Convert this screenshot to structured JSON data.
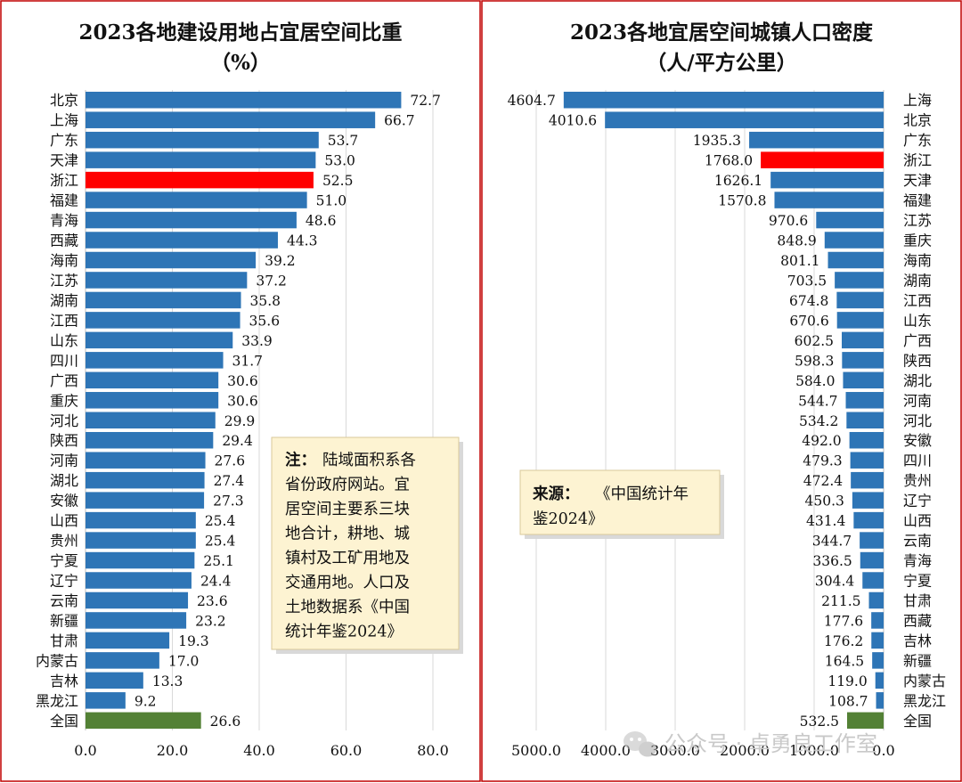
{
  "colors": {
    "frame": "#c00000",
    "bar": "#2e75b6",
    "highlight": "#ff0000",
    "national": "#538135",
    "grid": "#d9d9d9",
    "note_bg": "#fdf3d2"
  },
  "chart_data": [
    {
      "type": "bar",
      "orientation": "horizontal",
      "title": "2023各地建设用地占宜居空间比重",
      "subtitle": "（%）",
      "categories": [
        "北京",
        "上海",
        "广东",
        "天津",
        "浙江",
        "福建",
        "青海",
        "西藏",
        "海南",
        "江苏",
        "湖南",
        "江西",
        "山东",
        "四川",
        "广西",
        "重庆",
        "河北",
        "陕西",
        "河南",
        "湖北",
        "安徽",
        "山西",
        "贵州",
        "宁夏",
        "辽宁",
        "云南",
        "新疆",
        "甘肃",
        "内蒙古",
        "吉林",
        "黑龙江",
        "全国"
      ],
      "values": [
        72.7,
        66.7,
        53.7,
        53.0,
        52.5,
        51.0,
        48.6,
        44.3,
        39.2,
        37.2,
        35.8,
        35.6,
        33.9,
        31.7,
        30.6,
        30.6,
        29.9,
        29.4,
        27.6,
        27.4,
        27.3,
        25.4,
        25.4,
        25.1,
        24.4,
        23.6,
        23.2,
        19.3,
        17.0,
        13.3,
        9.2,
        26.6
      ],
      "value_labels": [
        "72.7",
        "66.7",
        "53.7",
        "53.0",
        "52.5",
        "51.0",
        "48.6",
        "44.3",
        "39.2",
        "37.2",
        "35.8",
        "35.6",
        "33.9",
        "31.7",
        "30.6",
        "30.6",
        "29.9",
        "29.4",
        "27.6",
        "27.4",
        "27.3",
        "25.4",
        "25.4",
        "25.1",
        "24.4",
        "23.6",
        "23.2",
        "19.3",
        "17.0",
        "13.3",
        "9.2",
        "26.6"
      ],
      "highlight": [
        "浙江"
      ],
      "total_category": "全国",
      "xlim": [
        0,
        80
      ],
      "ticks": [
        0,
        20,
        40,
        60,
        80
      ],
      "tick_labels": [
        "0.0",
        "20.0",
        "40.0",
        "60.0",
        "80.0"
      ],
      "grid": true,
      "note": {
        "label": "注：",
        "lines": [
          "陆域面积系各",
          "省份政府网站。宜",
          "居空间主要系三块",
          "地合计，耕地、城",
          "镇村及工矿用地及",
          "交通用地。人口及",
          "土地数据系《中国",
          "统计年鉴2024》"
        ]
      }
    },
    {
      "type": "bar",
      "orientation": "horizontal",
      "direction": "reversed",
      "title": "2023各地宜居空间城镇人口密度",
      "subtitle": "（人/平方公里）",
      "categories": [
        "上海",
        "北京",
        "广东",
        "浙江",
        "天津",
        "福建",
        "江苏",
        "重庆",
        "海南",
        "湖南",
        "江西",
        "山东",
        "广西",
        "陕西",
        "湖北",
        "河南",
        "河北",
        "安徽",
        "四川",
        "贵州",
        "辽宁",
        "山西",
        "云南",
        "青海",
        "宁夏",
        "甘肃",
        "西藏",
        "吉林",
        "新疆",
        "内蒙古",
        "黑龙江",
        "全国"
      ],
      "values": [
        4604.7,
        4010.6,
        1935.3,
        1768.0,
        1626.1,
        1570.8,
        970.6,
        848.9,
        801.1,
        703.5,
        674.8,
        670.6,
        602.5,
        598.3,
        584.0,
        544.7,
        534.2,
        492.0,
        479.3,
        472.4,
        450.3,
        431.4,
        344.7,
        336.5,
        304.4,
        211.5,
        177.6,
        176.2,
        164.5,
        119.0,
        108.7,
        532.5
      ],
      "value_labels": [
        "4604.7",
        "4010.6",
        "1935.3",
        "1768.0",
        "1626.1",
        "1570.8",
        "970.6",
        "848.9",
        "801.1",
        "703.5",
        "674.8",
        "670.6",
        "602.5",
        "598.3",
        "584.0",
        "544.7",
        "534.2",
        "492.0",
        "479.3",
        "472.4",
        "450.3",
        "431.4",
        "344.7",
        "336.5",
        "304.4",
        "211.5",
        "177.6",
        "176.2",
        "164.5",
        "119.0",
        "108.7",
        "532.5"
      ],
      "highlight": [
        "浙江"
      ],
      "total_category": "全国",
      "xlim": [
        0,
        5000
      ],
      "ticks": [
        5000,
        4000,
        3000,
        2000,
        1000,
        0
      ],
      "tick_labels": [
        "5000.0",
        "4000.0",
        "3000.0",
        "2000.0",
        "1000.0",
        "0.0"
      ],
      "grid": true,
      "note": {
        "label": "来源：",
        "lines": [
          "《中国统计年",
          "鉴2024》"
        ]
      }
    }
  ],
  "watermark": "公众号 · 卓勇良工作室",
  "watermark_icon": "wechat-icon"
}
